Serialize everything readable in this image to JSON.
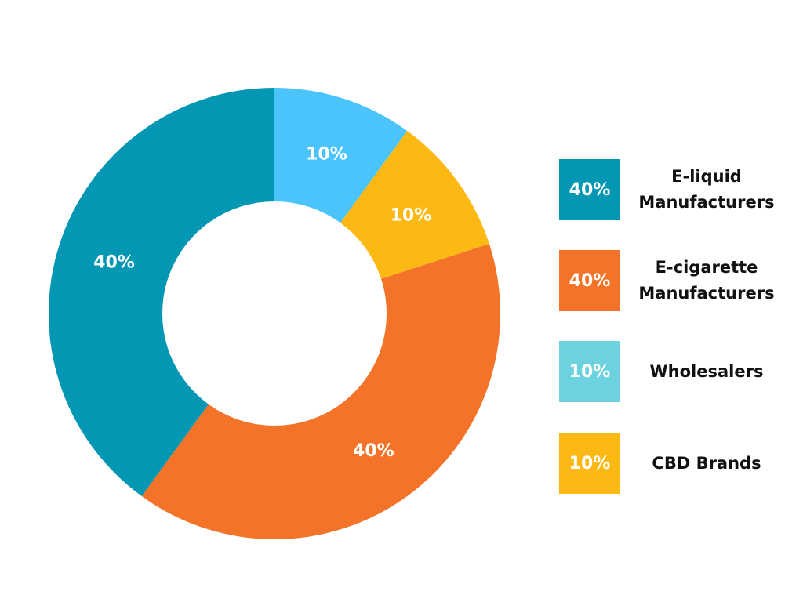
{
  "chart_data": {
    "type": "pie",
    "variant": "donut",
    "slices": [
      {
        "label": "Wholesalers",
        "value": 10,
        "display": "10%",
        "color": "#4bc4fc"
      },
      {
        "label": "CBD Brands",
        "value": 10,
        "display": "10%",
        "color": "#fdb913"
      },
      {
        "label": "E-cigarette Manufacturers",
        "value": 40,
        "display": "40%",
        "color": "#f37329"
      },
      {
        "label": "E-liquid Manufacturers",
        "value": 40,
        "display": "40%",
        "color": "#0397b3"
      }
    ],
    "legend_position": "right",
    "legend": [
      {
        "label": "E-liquid Manufacturers",
        "display": "40%",
        "color": "#0397b3"
      },
      {
        "label": "E-cigarette Manufacturers",
        "display": "40%",
        "color": "#f37329"
      },
      {
        "label": "Wholesalers",
        "display": "10%",
        "color": "#6dd2df"
      },
      {
        "label": "CBD Brands",
        "display": "10%",
        "color": "#fdb913"
      }
    ]
  }
}
